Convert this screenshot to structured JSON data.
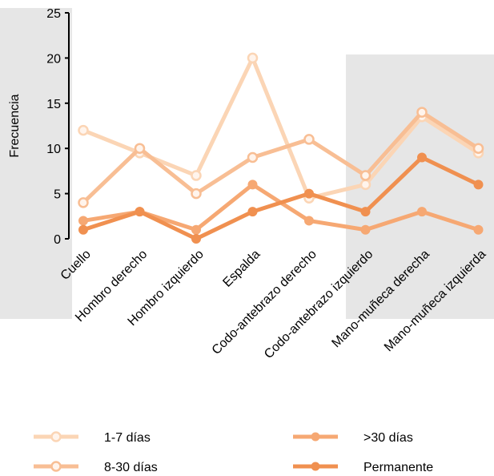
{
  "chart_data": {
    "type": "line",
    "title": "",
    "xlabel": "",
    "ylabel": "Frecuencia",
    "ylim": [
      0,
      25
    ],
    "yticks": [
      0,
      5,
      10,
      15,
      20,
      25
    ],
    "grid": false,
    "legend_position": "bottom",
    "categories": [
      "Cuello",
      "Hombro derecho",
      "Hombro izquierdo",
      "Espalda",
      "Codo-antebrazo derecho",
      "Codo-antebrazo izquierdo",
      "Mano-muñeca derecha",
      "Mano-muñeca izquierda"
    ],
    "series": [
      {
        "name": "1-7 días",
        "color": "#fbd5b5",
        "marker": "hollow",
        "values": [
          12,
          9.5,
          7,
          20,
          4.5,
          6,
          13.5,
          9.5
        ]
      },
      {
        "name": "8-30 días",
        "color": "#f8be94",
        "marker": "hollow",
        "values": [
          4,
          10,
          5,
          9,
          11,
          7,
          14,
          10
        ]
      },
      {
        "name": ">30 días",
        "color": "#f6a873",
        "marker": "filled",
        "values": [
          2,
          3,
          1,
          6,
          2,
          1,
          3,
          1
        ]
      },
      {
        "name": "Permanente",
        "color": "#f09050",
        "marker": "filled",
        "values": [
          1,
          3,
          0,
          3,
          5,
          3,
          9,
          6
        ]
      }
    ]
  }
}
